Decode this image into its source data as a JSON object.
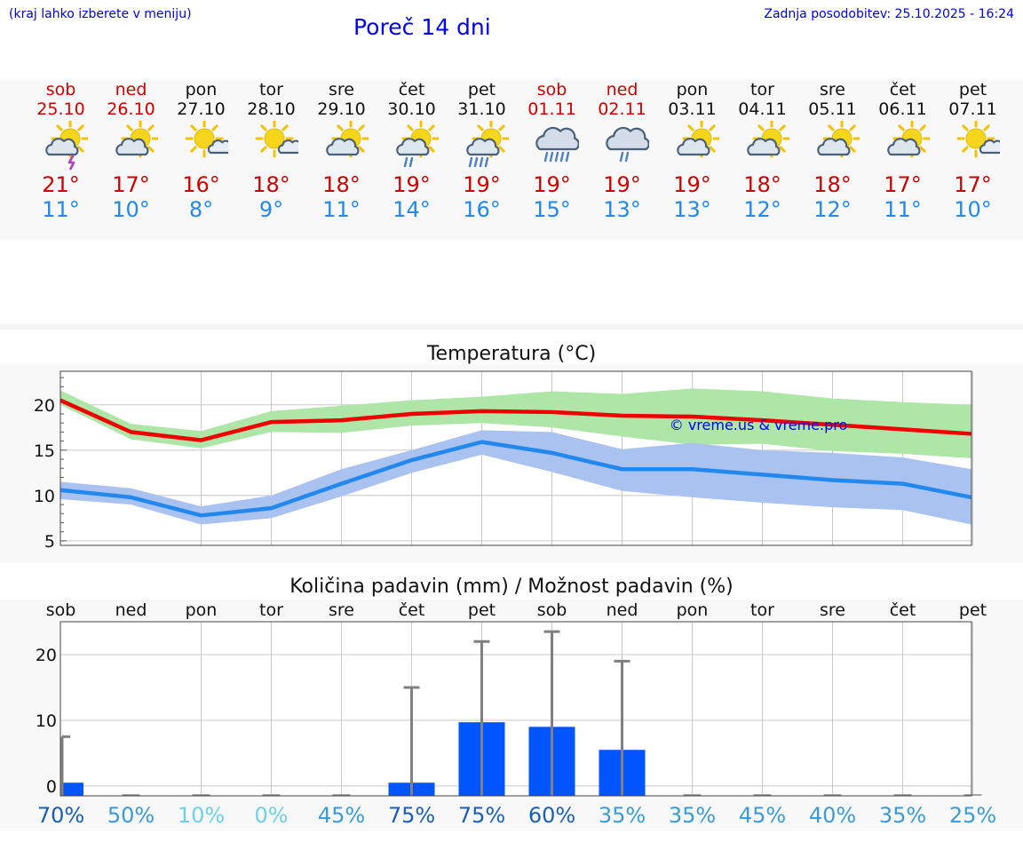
{
  "header": {
    "hint": "(kraj lahko izberete v meniju)",
    "title": "Poreč 14 dni",
    "updated": "Zadnja posodobitev: 25.10.2025 - 16:24"
  },
  "days": [
    {
      "name": "sob",
      "date": "25.10",
      "weekend": true,
      "icon": "sun-cloud-thunder-icon",
      "tmax": "21°",
      "tmin": "11°"
    },
    {
      "name": "ned",
      "date": "26.10",
      "weekend": true,
      "icon": "sun-cloud-icon",
      "tmax": "17°",
      "tmin": "10°"
    },
    {
      "name": "pon",
      "date": "27.10",
      "weekend": false,
      "icon": "sun-small-cloud-icon",
      "tmax": "16°",
      "tmin": "8°"
    },
    {
      "name": "tor",
      "date": "28.10",
      "weekend": false,
      "icon": "sun-small-cloud-icon",
      "tmax": "18°",
      "tmin": "9°"
    },
    {
      "name": "sre",
      "date": "29.10",
      "weekend": false,
      "icon": "sun-cloud-icon",
      "tmax": "18°",
      "tmin": "11°"
    },
    {
      "name": "čet",
      "date": "30.10",
      "weekend": false,
      "icon": "sun-cloud-rain-icon",
      "tmax": "19°",
      "tmin": "14°"
    },
    {
      "name": "pet",
      "date": "31.10",
      "weekend": false,
      "icon": "sun-cloud-heavy-rain-icon",
      "tmax": "19°",
      "tmin": "16°"
    },
    {
      "name": "sob",
      "date": "01.11",
      "weekend": true,
      "icon": "cloud-heavy-rain-icon",
      "tmax": "19°",
      "tmin": "15°"
    },
    {
      "name": "ned",
      "date": "02.11",
      "weekend": true,
      "icon": "cloud-rain-icon",
      "tmax": "19°",
      "tmin": "13°"
    },
    {
      "name": "pon",
      "date": "03.11",
      "weekend": false,
      "icon": "sun-cloud-icon",
      "tmax": "19°",
      "tmin": "13°"
    },
    {
      "name": "tor",
      "date": "04.11",
      "weekend": false,
      "icon": "sun-cloud-icon",
      "tmax": "18°",
      "tmin": "12°"
    },
    {
      "name": "sre",
      "date": "05.11",
      "weekend": false,
      "icon": "sun-cloud-icon",
      "tmax": "18°",
      "tmin": "12°"
    },
    {
      "name": "čet",
      "date": "06.11",
      "weekend": false,
      "icon": "sun-cloud-icon",
      "tmax": "17°",
      "tmin": "11°"
    },
    {
      "name": "pet",
      "date": "07.11",
      "weekend": false,
      "icon": "sun-small-cloud-icon",
      "tmax": "17°",
      "tmin": "10°"
    }
  ],
  "colors": {
    "max_line": "#ee0000",
    "max_band": "#aee6a8",
    "min_line": "#2288ee",
    "min_band": "#a9c2f0",
    "bar": "#0055ff",
    "whisker": "#808080",
    "weekend": "#cc0000",
    "temp_max": "#cc0000",
    "temp_min": "#2288ee"
  },
  "chart_data": [
    {
      "type": "line",
      "title": "Temperatura (°C)",
      "watermark": "© vreme.us & vreme.pro",
      "x": [
        0,
        1,
        2,
        3,
        4,
        5,
        6,
        7,
        8,
        9,
        10,
        11,
        12,
        13
      ],
      "ylim": [
        4.5,
        23.7
      ],
      "yticks": [
        5,
        10,
        15,
        20
      ],
      "series": [
        {
          "name": "max",
          "values": [
            20.5,
            17.0,
            16.1,
            18.1,
            18.3,
            19.0,
            19.3,
            19.2,
            18.8,
            18.7,
            18.3,
            17.8,
            17.3,
            16.8
          ],
          "band_low": [
            20.0,
            16.2,
            15.2,
            17.0,
            16.9,
            17.7,
            18.0,
            17.5,
            16.5,
            15.6,
            15.7,
            14.9,
            14.6,
            14.1
          ],
          "band_high": [
            21.6,
            17.9,
            17.1,
            19.3,
            19.9,
            20.5,
            20.9,
            21.5,
            21.2,
            21.8,
            21.5,
            20.7,
            20.3,
            20.0
          ]
        },
        {
          "name": "min",
          "values": [
            10.6,
            9.8,
            7.8,
            8.6,
            11.3,
            13.9,
            15.9,
            14.7,
            12.9,
            12.9,
            12.3,
            11.7,
            11.3,
            9.8
          ],
          "band_low": [
            9.6,
            9.0,
            6.8,
            7.5,
            9.9,
            12.5,
            14.5,
            12.6,
            10.5,
            9.8,
            9.2,
            8.7,
            8.4,
            6.8
          ],
          "band_high": [
            11.5,
            10.8,
            8.8,
            10.0,
            12.9,
            15.0,
            17.2,
            17.0,
            15.1,
            15.8,
            15.0,
            14.7,
            14.2,
            12.9
          ]
        }
      ]
    },
    {
      "type": "bar",
      "title": "Količina padavin (mm) / Možnost padavin (%)",
      "categories": [
        "sob",
        "ned",
        "pon",
        "tor",
        "sre",
        "čet",
        "pet",
        "sob",
        "ned",
        "pon",
        "tor",
        "sre",
        "čet",
        "pet"
      ],
      "values": [
        0.5,
        0,
        0,
        0,
        0,
        0.5,
        9.7,
        9.0,
        5.5,
        0,
        0,
        0,
        0,
        0
      ],
      "whisker_high": [
        7.5,
        0,
        0,
        0,
        0,
        15.0,
        22.0,
        23.5,
        19.0,
        0,
        0,
        0,
        0,
        0
      ],
      "probability": [
        "70%",
        "50%",
        "10%",
        "0%",
        "45%",
        "75%",
        "75%",
        "60%",
        "35%",
        "35%",
        "45%",
        "40%",
        "35%",
        "25%"
      ],
      "probability_colors": [
        "#1a5fb4",
        "#3c9bd6",
        "#6fd0e8",
        "#6fd0e8",
        "#3c9bd6",
        "#1a5fb4",
        "#1a5fb4",
        "#1a5fb4",
        "#3c9bd6",
        "#3c9bd6",
        "#3c9bd6",
        "#3c9bd6",
        "#3c9bd6",
        "#3c9bd6"
      ],
      "ylim": [
        -1.5,
        25
      ],
      "yticks": [
        0,
        10,
        20
      ]
    }
  ]
}
